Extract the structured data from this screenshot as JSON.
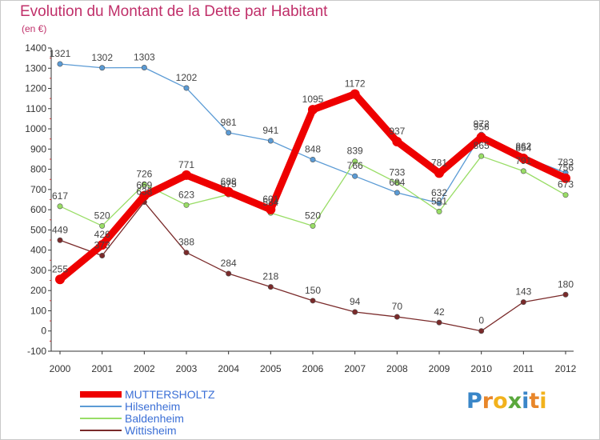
{
  "header": {
    "title": "Evolution du Montant de la Dette par Habitant",
    "unit": "(en €)"
  },
  "logo": {
    "text": "Proxiti",
    "letters": [
      {
        "ch": "P",
        "color": "#3a86c8"
      },
      {
        "ch": "r",
        "color": "#e8862a"
      },
      {
        "ch": "o",
        "color": "#f2b21c"
      },
      {
        "ch": "x",
        "color": "#5aa83c"
      },
      {
        "ch": "i",
        "color": "#3a86c8"
      },
      {
        "ch": "t",
        "color": "#e8862a"
      },
      {
        "ch": "i",
        "color": "#f2b21c"
      }
    ]
  },
  "chart_data": {
    "type": "line",
    "x": [
      "2000",
      "2001",
      "2002",
      "2003",
      "2004",
      "2005",
      "2006",
      "2007",
      "2008",
      "2009",
      "2010",
      "2011",
      "2012"
    ],
    "ylim": [
      -100,
      1400
    ],
    "yticks": [
      -100,
      0,
      100,
      200,
      300,
      400,
      500,
      600,
      700,
      800,
      900,
      1000,
      1100,
      1200,
      1300,
      1400
    ],
    "grid": false,
    "legend_position": "bottom-left",
    "series": [
      {
        "name": "MUTTERSHOLTZ",
        "color": "#ee0000",
        "emphasis": true,
        "values": [
          255,
          426,
          669,
          771,
          688,
          601,
          1095,
          1172,
          937,
          781,
          958,
          854,
          756
        ]
      },
      {
        "name": "Hilsenheim",
        "color": "#5b9bd5",
        "emphasis": false,
        "values": [
          1321,
          1302,
          1303,
          1202,
          981,
          941,
          848,
          766,
          684,
          632,
          972,
          862,
          783
        ]
      },
      {
        "name": "Baldenheim",
        "color": "#99dd66",
        "emphasis": false,
        "values": [
          617,
          520,
          726,
          623,
          675,
          584,
          520,
          839,
          733,
          591,
          865,
          791,
          673
        ]
      },
      {
        "name": "Wittisheim",
        "color": "#7a2a2a",
        "emphasis": false,
        "values": [
          449,
          373,
          638,
          388,
          284,
          218,
          150,
          94,
          70,
          42,
          0,
          143,
          180
        ]
      }
    ]
  }
}
